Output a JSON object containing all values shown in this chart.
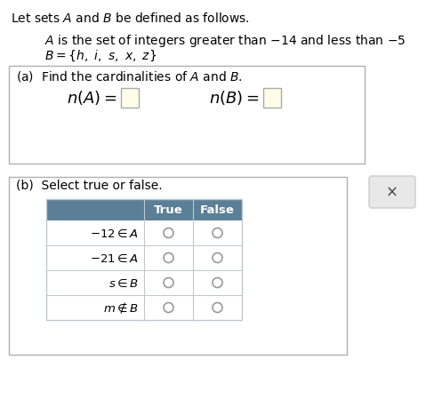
{
  "title_text": "Let sets $\\mathit{A}$ and $\\mathit{B}$ be defined as follows.",
  "line1_plain": "is the set of integers greater than −14 and less than −5",
  "line1_italic": "$\\mathit{A}$",
  "line2": "$B = \\{h,\\ i,\\ s,\\ x,\\ z\\}$",
  "part_a_label": "(a)  Find the cardinalities of $\\mathit{A}$ and $\\mathit{B}$.",
  "n_A_text": "$n\\left(A\\right) = $",
  "n_B_text": "$n\\left(B\\right) = $",
  "part_b_label": "(b)  Select true or false.",
  "table_header": [
    "True",
    "False"
  ],
  "table_rows": [
    "$-12 \\in A$",
    "$-21 \\in A$",
    "$s \\in B$",
    "$m \\notin B$"
  ],
  "box1_color": "#ffffff",
  "box1_border": "#b0b0b0",
  "box2_color": "#ffffff",
  "box2_border": "#b0b0b0",
  "table_header_bg": "#5b7f96",
  "table_header_fg": "#ffffff",
  "table_border": "#c0c8cc",
  "input_box_color": "#fffde7",
  "input_box_border": "#aaaaaa",
  "radio_color": "#999999",
  "x_button_bg": "#e8e8e8",
  "x_button_border": "#cccccc",
  "bg_color": "#ffffff"
}
